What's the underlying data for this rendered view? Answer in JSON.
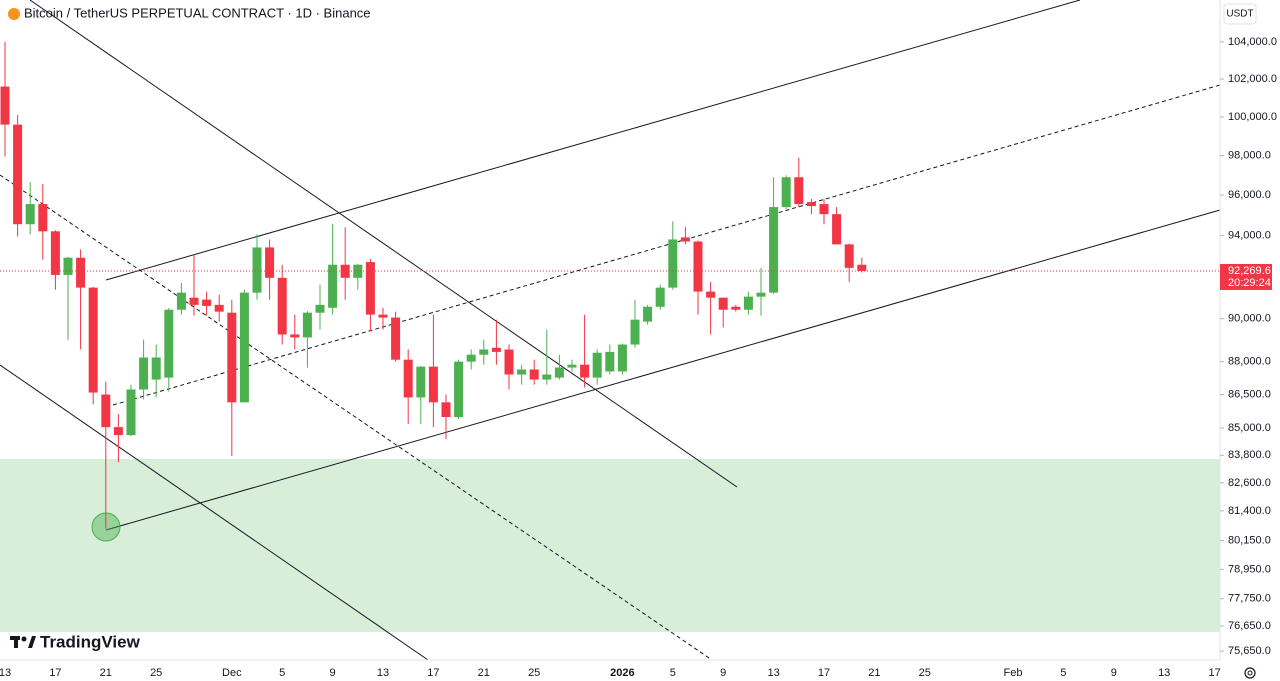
{
  "chart_data": {
    "type": "candlestick",
    "title": "Bitcoin / TetherUS PERPETUAL CONTRACT · 1D · Binance",
    "currency": "USDT",
    "watermark": "TradingView",
    "log_scale": true,
    "grid": false,
    "up_color": "#4caf50",
    "down_color": "#f23645",
    "categories": [
      "13",
      null,
      null,
      null,
      "17",
      null,
      null,
      null,
      "21",
      null,
      null,
      null,
      "25",
      null,
      null,
      null,
      null,
      null,
      "Dec",
      null,
      null,
      null,
      "5",
      null,
      null,
      null,
      "9",
      null,
      null,
      null,
      "13",
      null,
      null,
      null,
      "17",
      null,
      null,
      null,
      "21",
      null,
      null,
      null,
      "25",
      null,
      null,
      null,
      null,
      null,
      null,
      "2026",
      null,
      null,
      null,
      "5",
      null,
      null,
      null,
      "9",
      null,
      null,
      null,
      "13",
      null,
      null,
      null,
      "17",
      null,
      null,
      null,
      "21",
      null,
      null,
      null,
      "25",
      null,
      null,
      null,
      null,
      null,
      null,
      "Feb",
      null,
      null,
      null,
      "5",
      null,
      null,
      null,
      "9",
      null,
      null,
      null,
      "13",
      null,
      null,
      null,
      "17"
    ],
    "open": [
      101600,
      99600,
      94550,
      95550,
      94200,
      92080,
      92910,
      91470,
      86500,
      85040,
      84690,
      86730,
      87180,
      87270,
      90420,
      90990,
      90900,
      90650,
      90280,
      86150,
      91230,
      93410,
      91940,
      89260,
      89120,
      90280,
      90510,
      92570,
      91940,
      92700,
      90190,
      90050,
      88090,
      86370,
      87770,
      86150,
      85490,
      88000,
      88320,
      88640,
      88560,
      87410,
      87640,
      87180,
      87270,
      87730,
      87860,
      87270,
      87550,
      87550,
      88790,
      89860,
      90560,
      91470,
      93900,
      93700,
      91280,
      90990,
      90560,
      90420,
      91040,
      91230,
      95400,
      96900,
      95650,
      95550,
      95050,
      93560,
      92570,
      null,
      null,
      null,
      null,
      null,
      null,
      null,
      null,
      null,
      null,
      null,
      null,
      null,
      null,
      null,
      null,
      null,
      null,
      null,
      null,
      null,
      null,
      null,
      null,
      null,
      null,
      null,
      null
    ],
    "high": [
      104000,
      100100,
      96650,
      96550,
      94250,
      92950,
      93310,
      91500,
      87090,
      85620,
      86950,
      89020,
      88790,
      90500,
      91700,
      93060,
      91280,
      91130,
      90890,
      91370,
      94050,
      93800,
      92570,
      90190,
      90350,
      91610,
      94550,
      94400,
      92600,
      92850,
      90510,
      90330,
      88560,
      87800,
      90190,
      86500,
      88090,
      88560,
      89020,
      89950,
      88790,
      87860,
      88090,
      89490,
      88320,
      88090,
      90190,
      88560,
      88790,
      88830,
      90890,
      90650,
      91610,
      94700,
      94400,
      93750,
      91750,
      91000,
      90650,
      91280,
      92420,
      96900,
      97000,
      97900,
      95800,
      95800,
      95400,
      93600,
      92910,
      null,
      null,
      null,
      null,
      null,
      null,
      null,
      null,
      null,
      null,
      null,
      null,
      null,
      null,
      null,
      null,
      null,
      null,
      null,
      null,
      null,
      null,
      null,
      null,
      null,
      null,
      null,
      null
    ],
    "low": [
      97950,
      93950,
      94050,
      92810,
      91370,
      89020,
      88560,
      86060,
      80650,
      83500,
      84650,
      86280,
      86370,
      86640,
      90190,
      90140,
      90140,
      89860,
      83760,
      86150,
      90890,
      90890,
      88790,
      88560,
      87730,
      89490,
      90190,
      90890,
      91370,
      89400,
      89490,
      88000,
      85180,
      85180,
      85040,
      84510,
      85400,
      87640,
      87860,
      87860,
      86730,
      86950,
      86950,
      86950,
      87180,
      87550,
      86820,
      86950,
      87410,
      87410,
      88640,
      89720,
      90420,
      91370,
      93560,
      90190,
      89260,
      89580,
      90330,
      90190,
      90140,
      91180,
      95300,
      95400,
      95050,
      94550,
      93560,
      91750,
      92200,
      null,
      null,
      null,
      null,
      null,
      null,
      null,
      null,
      null,
      null,
      null,
      null,
      null,
      null,
      null,
      null,
      null,
      null,
      null,
      null,
      null,
      null,
      null,
      null,
      null,
      null,
      null,
      null
    ],
    "close": [
      99600,
      94550,
      95550,
      94200,
      92080,
      92910,
      91470,
      86590,
      85040,
      84690,
      86730,
      88190,
      88190,
      90420,
      91230,
      90650,
      90600,
      90330,
      86150,
      91230,
      93410,
      91940,
      89260,
      89120,
      90280,
      90650,
      92570,
      91940,
      92570,
      90190,
      90050,
      88090,
      86370,
      87770,
      86150,
      85490,
      88000,
      88320,
      88560,
      88450,
      87410,
      87640,
      87180,
      87410,
      87730,
      87860,
      87270,
      88410,
      88450,
      88790,
      89950,
      90560,
      91470,
      93800,
      93700,
      91280,
      90990,
      90420,
      90420,
      91040,
      91230,
      95400,
      96900,
      95550,
      95450,
      95050,
      93560,
      92420,
      92270,
      null,
      null,
      null,
      null,
      null,
      null,
      null,
      null,
      null,
      null,
      null,
      null,
      null,
      null,
      null,
      null,
      null,
      null,
      null,
      null,
      null,
      null,
      null,
      null,
      null,
      null,
      null,
      null
    ],
    "ylim": [
      75300,
      106300
    ],
    "yticks": [
      {
        "value": 104000,
        "label": "104,000.0"
      },
      {
        "value": 102000,
        "label": "102,000.0"
      },
      {
        "value": 100000,
        "label": "100,000.0"
      },
      {
        "value": 98000,
        "label": "98,000.0"
      },
      {
        "value": 96000,
        "label": "96,000.0"
      },
      {
        "value": 94000,
        "label": "94,000.0"
      },
      {
        "value": 90000,
        "label": "90,000.0"
      },
      {
        "value": 88000,
        "label": "88,000.0"
      },
      {
        "value": 86500,
        "label": "86,500.0"
      },
      {
        "value": 85000,
        "label": "85,000.0"
      },
      {
        "value": 83800,
        "label": "83,800.0"
      },
      {
        "value": 82600,
        "label": "82,600.0"
      },
      {
        "value": 81400,
        "label": "81,400.0"
      },
      {
        "value": 80150,
        "label": "80,150.0"
      },
      {
        "value": 78950,
        "label": "78,950.0"
      },
      {
        "value": 77750,
        "label": "77,750.0"
      },
      {
        "value": 76650,
        "label": "76,650.0"
      },
      {
        "value": 75650,
        "label": "75,650.0"
      }
    ],
    "last_price": {
      "value": 92269.6,
      "label": "92,269.6"
    },
    "countdown": "20:29:24"
  }
}
